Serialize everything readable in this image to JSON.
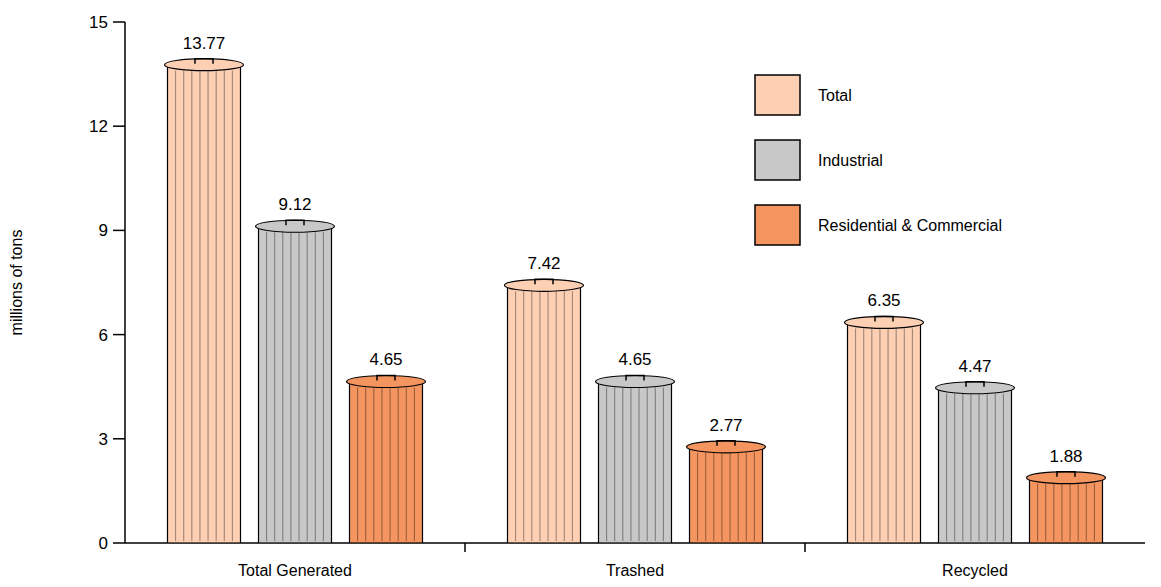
{
  "chart_data": {
    "type": "bar",
    "y_label": "millions of tons",
    "categories": [
      "Total Generated",
      "Trashed",
      "Recycled"
    ],
    "series": [
      {
        "name": "Total",
        "color": "#fdd0b4",
        "values": [
          13.77,
          7.42,
          6.35
        ]
      },
      {
        "name": "Industrial",
        "color": "#c8c8c8",
        "values": [
          9.12,
          4.65,
          4.47
        ]
      },
      {
        "name": "Residential & Commercial",
        "color": "#f4955f",
        "values": [
          4.65,
          2.77,
          1.88
        ]
      }
    ],
    "ylim": [
      0,
      15
    ],
    "yticks": [
      0,
      3,
      6,
      9,
      12,
      15
    ],
    "grid": false,
    "legend": "upper right",
    "data_labels": true
  }
}
